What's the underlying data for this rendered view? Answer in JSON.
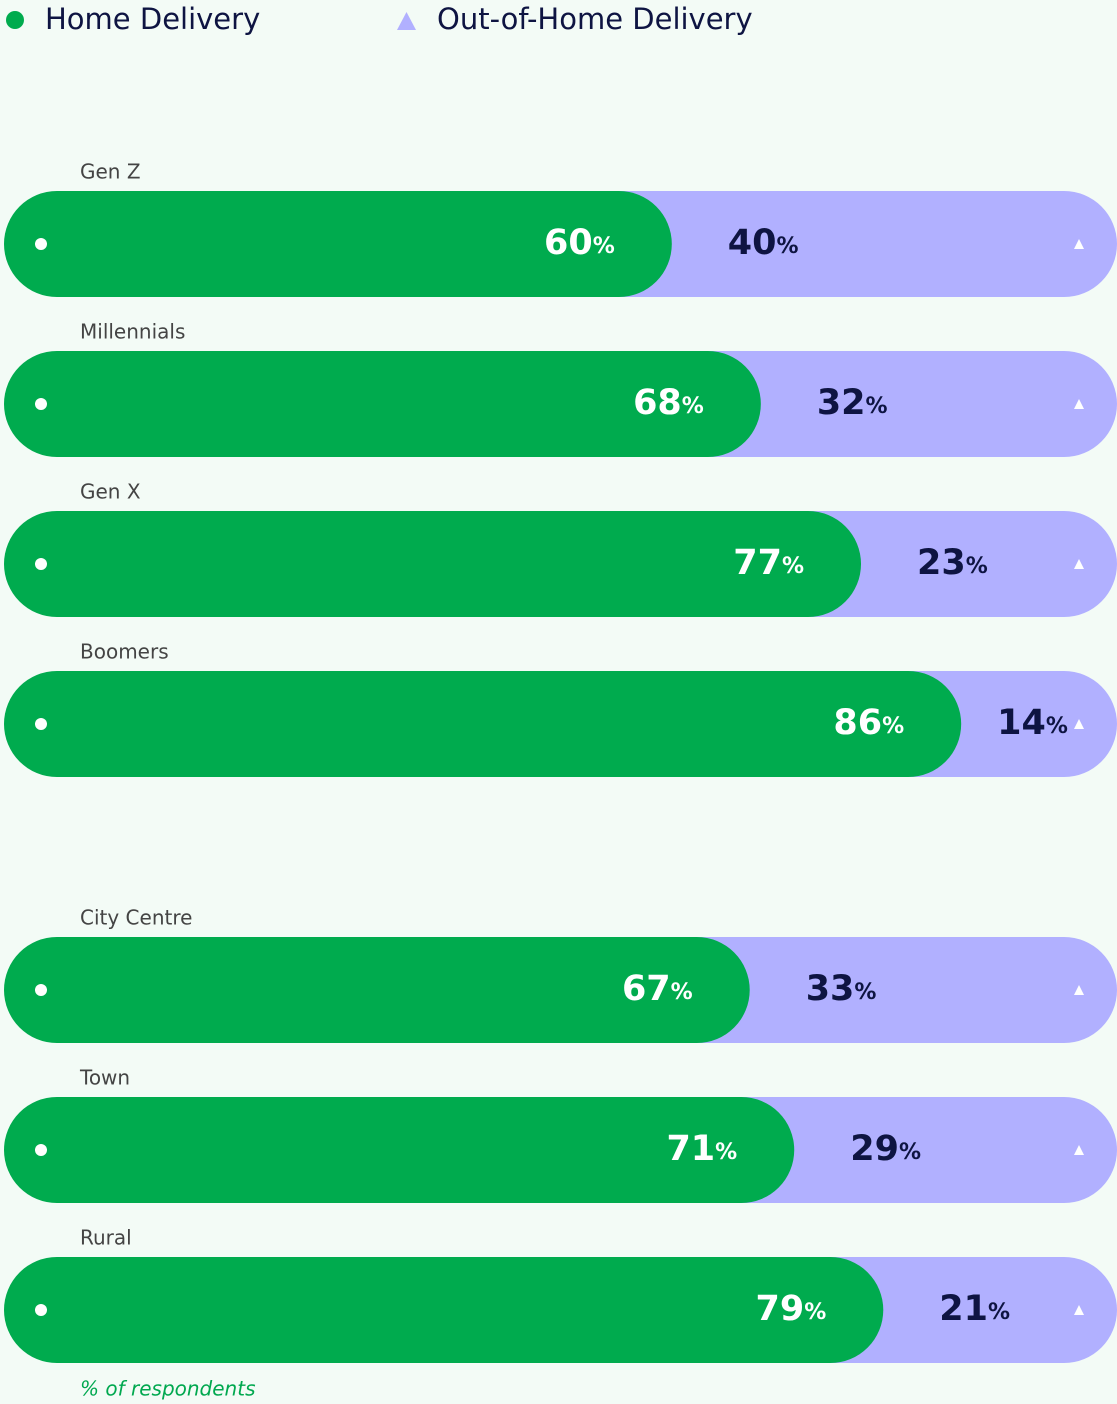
{
  "chart_data": {
    "type": "stacked-bar-100",
    "categories": [
      "Gen Z",
      "Millennials",
      "Gen X",
      "Boomers",
      "City Centre",
      "Town",
      "Rural"
    ],
    "series": [
      {
        "name": "Home Delivery",
        "color": "#00ab4e",
        "label_color": "#ffffff",
        "values": [
          60,
          68,
          77,
          86,
          67,
          71,
          79
        ],
        "value_labels": [
          "60%",
          "68%",
          "77%",
          "86%",
          "67%",
          "71%",
          "79%"
        ]
      },
      {
        "name": "Out-of-Home Delivery",
        "color": "#b1b0ff",
        "label_color": "#0e1442",
        "values": [
          40,
          32,
          23,
          14,
          33,
          29,
          21
        ],
        "value_labels": [
          "40%",
          "32%",
          "23%",
          "14%",
          "33%",
          "29%",
          "21%"
        ]
      }
    ],
    "xlim": [
      0,
      100
    ],
    "note": "% of respondents"
  }
}
